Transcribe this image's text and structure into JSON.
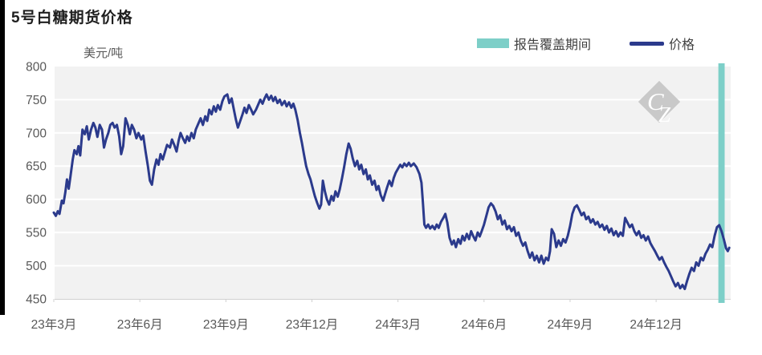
{
  "title": "5号白糖期货价格",
  "legend": {
    "band": {
      "label": "报告覆盖期间",
      "color": "#7dcfc8"
    },
    "line": {
      "label": "价格",
      "color": "#2b3a8c"
    }
  },
  "watermark": {
    "letters_1": "C",
    "letters_2": "Z",
    "diamond_color": "#c9c9c9",
    "letter_color": "#ffffff"
  },
  "colors": {
    "plot_background": "#f2f2f2",
    "gridline": "#ffffff",
    "axis_text": "#595959",
    "tick_mark": "#d0d0d0",
    "price_line": "#2b3a8c",
    "coverage_band": "#7dcfc8"
  },
  "chart_data": {
    "type": "line",
    "title": "5号白糖期货价格",
    "xlabel": "",
    "ylabel": "美元/吨",
    "ylim": [
      450,
      800
    ],
    "y_ticks": [
      800,
      750,
      700,
      650,
      600,
      550,
      500,
      450
    ],
    "x_tick_labels": [
      "23年3月",
      "23年6月",
      "23年9月",
      "23年12月",
      "24年3月",
      "24年6月",
      "24年9月",
      "24年12月"
    ],
    "x_tick_positions_months": [
      0,
      3,
      6,
      9,
      12,
      15,
      18,
      21
    ],
    "x_range_months": [
      0,
      23.6
    ],
    "grid": true,
    "legend_position": "top-right",
    "coverage_band": {
      "label": "报告覆盖期间",
      "x_from_months": 23.17,
      "x_to_months": 23.39
    },
    "series": [
      {
        "name": "价格",
        "unit": "美元/吨",
        "points": [
          [
            0.0,
            580
          ],
          [
            0.07,
            575
          ],
          [
            0.14,
            582
          ],
          [
            0.2,
            578
          ],
          [
            0.28,
            598
          ],
          [
            0.34,
            594
          ],
          [
            0.4,
            610
          ],
          [
            0.46,
            630
          ],
          [
            0.52,
            616
          ],
          [
            0.58,
            634
          ],
          [
            0.66,
            660
          ],
          [
            0.72,
            674
          ],
          [
            0.8,
            668
          ],
          [
            0.86,
            680
          ],
          [
            0.92,
            666
          ],
          [
            1.0,
            705
          ],
          [
            1.08,
            698
          ],
          [
            1.15,
            710
          ],
          [
            1.22,
            690
          ],
          [
            1.3,
            705
          ],
          [
            1.38,
            715
          ],
          [
            1.45,
            708
          ],
          [
            1.52,
            694
          ],
          [
            1.6,
            712
          ],
          [
            1.68,
            705
          ],
          [
            1.75,
            678
          ],
          [
            1.82,
            690
          ],
          [
            1.9,
            700
          ],
          [
            1.97,
            712
          ],
          [
            2.05,
            715
          ],
          [
            2.12,
            708
          ],
          [
            2.2,
            712
          ],
          [
            2.28,
            695
          ],
          [
            2.35,
            668
          ],
          [
            2.42,
            680
          ],
          [
            2.5,
            722
          ],
          [
            2.58,
            712
          ],
          [
            2.65,
            698
          ],
          [
            2.72,
            712
          ],
          [
            2.8,
            705
          ],
          [
            2.88,
            692
          ],
          [
            2.95,
            700
          ],
          [
            3.05,
            690
          ],
          [
            3.12,
            696
          ],
          [
            3.2,
            672
          ],
          [
            3.28,
            650
          ],
          [
            3.35,
            628
          ],
          [
            3.42,
            622
          ],
          [
            3.5,
            645
          ],
          [
            3.58,
            660
          ],
          [
            3.65,
            652
          ],
          [
            3.72,
            668
          ],
          [
            3.8,
            660
          ],
          [
            3.88,
            672
          ],
          [
            3.95,
            682
          ],
          [
            4.05,
            678
          ],
          [
            4.12,
            690
          ],
          [
            4.2,
            682
          ],
          [
            4.28,
            672
          ],
          [
            4.35,
            688
          ],
          [
            4.42,
            700
          ],
          [
            4.5,
            692
          ],
          [
            4.58,
            685
          ],
          [
            4.65,
            695
          ],
          [
            4.72,
            688
          ],
          [
            4.8,
            700
          ],
          [
            4.88,
            692
          ],
          [
            4.95,
            705
          ],
          [
            5.05,
            715
          ],
          [
            5.12,
            722
          ],
          [
            5.2,
            712
          ],
          [
            5.28,
            725
          ],
          [
            5.35,
            718
          ],
          [
            5.42,
            735
          ],
          [
            5.5,
            728
          ],
          [
            5.58,
            740
          ],
          [
            5.65,
            732
          ],
          [
            5.72,
            742
          ],
          [
            5.8,
            735
          ],
          [
            5.88,
            748
          ],
          [
            5.95,
            755
          ],
          [
            6.05,
            758
          ],
          [
            6.12,
            745
          ],
          [
            6.2,
            752
          ],
          [
            6.28,
            735
          ],
          [
            6.35,
            720
          ],
          [
            6.42,
            708
          ],
          [
            6.5,
            718
          ],
          [
            6.58,
            728
          ],
          [
            6.65,
            738
          ],
          [
            6.72,
            730
          ],
          [
            6.8,
            742
          ],
          [
            6.88,
            735
          ],
          [
            6.95,
            728
          ],
          [
            7.05,
            735
          ],
          [
            7.12,
            742
          ],
          [
            7.2,
            750
          ],
          [
            7.28,
            744
          ],
          [
            7.35,
            752
          ],
          [
            7.42,
            758
          ],
          [
            7.5,
            750
          ],
          [
            7.58,
            756
          ],
          [
            7.65,
            748
          ],
          [
            7.72,
            754
          ],
          [
            7.8,
            745
          ],
          [
            7.88,
            750
          ],
          [
            7.95,
            742
          ],
          [
            8.05,
            748
          ],
          [
            8.12,
            740
          ],
          [
            8.2,
            746
          ],
          [
            8.28,
            738
          ],
          [
            8.35,
            744
          ],
          [
            8.42,
            735
          ],
          [
            8.5,
            720
          ],
          [
            8.58,
            700
          ],
          [
            8.65,
            685
          ],
          [
            8.72,
            668
          ],
          [
            8.8,
            650
          ],
          [
            8.88,
            638
          ],
          [
            8.95,
            630
          ],
          [
            9.02,
            618
          ],
          [
            9.1,
            605
          ],
          [
            9.18,
            595
          ],
          [
            9.26,
            586
          ],
          [
            9.32,
            592
          ],
          [
            9.38,
            628
          ],
          [
            9.45,
            612
          ],
          [
            9.52,
            600
          ],
          [
            9.6,
            592
          ],
          [
            9.68,
            605
          ],
          [
            9.75,
            598
          ],
          [
            9.82,
            612
          ],
          [
            9.9,
            604
          ],
          [
            9.97,
            615
          ],
          [
            10.05,
            632
          ],
          [
            10.12,
            648
          ],
          [
            10.2,
            668
          ],
          [
            10.28,
            684
          ],
          [
            10.35,
            676
          ],
          [
            10.42,
            662
          ],
          [
            10.5,
            650
          ],
          [
            10.58,
            658
          ],
          [
            10.65,
            645
          ],
          [
            10.72,
            652
          ],
          [
            10.8,
            638
          ],
          [
            10.88,
            645
          ],
          [
            10.95,
            630
          ],
          [
            11.02,
            636
          ],
          [
            11.1,
            622
          ],
          [
            11.18,
            628
          ],
          [
            11.25,
            614
          ],
          [
            11.32,
            620
          ],
          [
            11.4,
            606
          ],
          [
            11.48,
            598
          ],
          [
            11.55,
            608
          ],
          [
            11.62,
            618
          ],
          [
            11.7,
            628
          ],
          [
            11.78,
            620
          ],
          [
            11.85,
            632
          ],
          [
            11.92,
            640
          ],
          [
            12.0,
            646
          ],
          [
            12.08,
            652
          ],
          [
            12.15,
            648
          ],
          [
            12.22,
            654
          ],
          [
            12.3,
            650
          ],
          [
            12.38,
            655
          ],
          [
            12.45,
            650
          ],
          [
            12.55,
            654
          ],
          [
            12.65,
            648
          ],
          [
            12.75,
            638
          ],
          [
            12.82,
            625
          ],
          [
            12.87,
            595
          ],
          [
            12.92,
            562
          ],
          [
            12.98,
            557
          ],
          [
            13.05,
            562
          ],
          [
            13.12,
            556
          ],
          [
            13.2,
            560
          ],
          [
            13.28,
            555
          ],
          [
            13.35,
            562
          ],
          [
            13.42,
            557
          ],
          [
            13.5,
            566
          ],
          [
            13.58,
            572
          ],
          [
            13.65,
            578
          ],
          [
            13.72,
            565
          ],
          [
            13.8,
            542
          ],
          [
            13.88,
            532
          ],
          [
            13.95,
            538
          ],
          [
            14.02,
            528
          ],
          [
            14.1,
            540
          ],
          [
            14.18,
            533
          ],
          [
            14.25,
            545
          ],
          [
            14.32,
            538
          ],
          [
            14.4,
            548
          ],
          [
            14.48,
            540
          ],
          [
            14.55,
            552
          ],
          [
            14.62,
            545
          ],
          [
            14.7,
            538
          ],
          [
            14.78,
            550
          ],
          [
            14.85,
            544
          ],
          [
            14.92,
            552
          ],
          [
            15.0,
            562
          ],
          [
            15.08,
            575
          ],
          [
            15.16,
            588
          ],
          [
            15.24,
            594
          ],
          [
            15.32,
            590
          ],
          [
            15.4,
            582
          ],
          [
            15.48,
            570
          ],
          [
            15.56,
            576
          ],
          [
            15.64,
            562
          ],
          [
            15.72,
            568
          ],
          [
            15.8,
            555
          ],
          [
            15.88,
            560
          ],
          [
            15.96,
            552
          ],
          [
            16.04,
            558
          ],
          [
            16.12,
            545
          ],
          [
            16.2,
            550
          ],
          [
            16.28,
            538
          ],
          [
            16.36,
            530
          ],
          [
            16.44,
            535
          ],
          [
            16.52,
            522
          ],
          [
            16.6,
            512
          ],
          [
            16.68,
            520
          ],
          [
            16.76,
            508
          ],
          [
            16.84,
            515
          ],
          [
            16.92,
            505
          ],
          [
            17.0,
            515
          ],
          [
            17.08,
            503
          ],
          [
            17.16,
            512
          ],
          [
            17.24,
            508
          ],
          [
            17.3,
            522
          ],
          [
            17.36,
            555
          ],
          [
            17.44,
            548
          ],
          [
            17.52,
            528
          ],
          [
            17.6,
            538
          ],
          [
            17.68,
            530
          ],
          [
            17.76,
            540
          ],
          [
            17.84,
            535
          ],
          [
            17.92,
            545
          ],
          [
            18.0,
            560
          ],
          [
            18.08,
            578
          ],
          [
            18.16,
            588
          ],
          [
            18.24,
            591
          ],
          [
            18.32,
            584
          ],
          [
            18.4,
            576
          ],
          [
            18.48,
            580
          ],
          [
            18.56,
            570
          ],
          [
            18.64,
            574
          ],
          [
            18.72,
            565
          ],
          [
            18.8,
            570
          ],
          [
            18.88,
            562
          ],
          [
            18.96,
            566
          ],
          [
            19.04,
            558
          ],
          [
            19.12,
            562
          ],
          [
            19.2,
            554
          ],
          [
            19.28,
            560
          ],
          [
            19.36,
            550
          ],
          [
            19.44,
            556
          ],
          [
            19.52,
            546
          ],
          [
            19.6,
            552
          ],
          [
            19.68,
            544
          ],
          [
            19.76,
            550
          ],
          [
            19.84,
            545
          ],
          [
            19.92,
            572
          ],
          [
            20.0,
            565
          ],
          [
            20.08,
            558
          ],
          [
            20.16,
            562
          ],
          [
            20.24,
            552
          ],
          [
            20.32,
            546
          ],
          [
            20.4,
            552
          ],
          [
            20.48,
            542
          ],
          [
            20.56,
            546
          ],
          [
            20.64,
            538
          ],
          [
            20.72,
            544
          ],
          [
            20.8,
            534
          ],
          [
            20.88,
            528
          ],
          [
            20.96,
            522
          ],
          [
            21.04,
            515
          ],
          [
            21.12,
            509
          ],
          [
            21.2,
            513
          ],
          [
            21.28,
            505
          ],
          [
            21.36,
            498
          ],
          [
            21.44,
            492
          ],
          [
            21.52,
            484
          ],
          [
            21.6,
            476
          ],
          [
            21.68,
            469
          ],
          [
            21.76,
            474
          ],
          [
            21.84,
            466
          ],
          [
            21.92,
            471
          ],
          [
            22.0,
            465
          ],
          [
            22.08,
            477
          ],
          [
            22.16,
            488
          ],
          [
            22.24,
            497
          ],
          [
            22.32,
            492
          ],
          [
            22.4,
            505
          ],
          [
            22.48,
            500
          ],
          [
            22.56,
            512
          ],
          [
            22.64,
            508
          ],
          [
            22.72,
            518
          ],
          [
            22.8,
            524
          ],
          [
            22.88,
            532
          ],
          [
            22.96,
            528
          ],
          [
            23.04,
            545
          ],
          [
            23.12,
            558
          ],
          [
            23.2,
            561
          ],
          [
            23.28,
            552
          ],
          [
            23.36,
            540
          ],
          [
            23.44,
            526
          ],
          [
            23.5,
            522
          ],
          [
            23.55,
            527
          ]
        ]
      }
    ]
  }
}
